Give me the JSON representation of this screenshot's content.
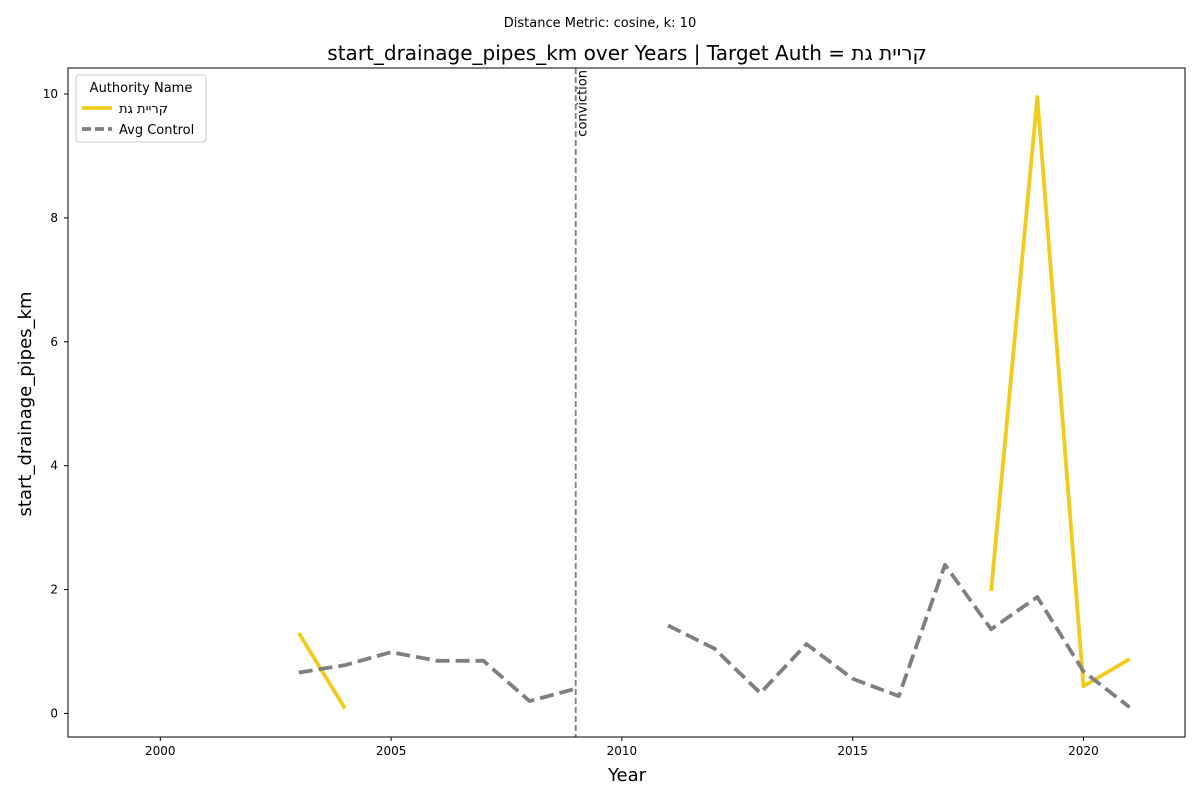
{
  "chart_data": {
    "type": "line",
    "suptitle": "Distance Metric: cosine, k: 10",
    "title": "start_drainage_pipes_km over Years | Target Auth = קריית גת",
    "xlabel": "Year",
    "ylabel": "start_drainage_pipes_km",
    "xlim": [
      1998,
      2022.2
    ],
    "ylim": [
      -0.38,
      10.42
    ],
    "xticks": [
      2000,
      2005,
      2010,
      2015,
      2020
    ],
    "yticks": [
      0,
      2,
      4,
      6,
      8,
      10
    ],
    "grid": false,
    "legend": {
      "title": "Authority Name",
      "placement": "top-left"
    },
    "annotations": [
      {
        "type": "vline",
        "x": 2009,
        "label": "conviction",
        "color": "#808080",
        "style": "dashed"
      }
    ],
    "series": [
      {
        "name": "קריית גת",
        "color": "#f2cc1c",
        "style": "solid",
        "segments": [
          {
            "x": [
              2003,
              2004
            ],
            "y": [
              1.3,
              0.08
            ]
          },
          {
            "x": [
              2018,
              2019,
              2020,
              2021
            ],
            "y": [
              1.98,
              9.95,
              0.44,
              0.88
            ]
          }
        ]
      },
      {
        "name": "Avg Control",
        "color": "#808080",
        "style": "dashed",
        "segments": [
          {
            "x": [
              2003,
              2004,
              2005,
              2006,
              2007,
              2008,
              2009
            ],
            "y": [
              0.66,
              0.78,
              0.99,
              0.85,
              0.85,
              0.2,
              0.4
            ]
          },
          {
            "x": [
              2011,
              2012,
              2013,
              2014,
              2015,
              2016,
              2017,
              2018,
              2019,
              2020,
              2021
            ],
            "y": [
              1.42,
              1.05,
              0.33,
              1.12,
              0.56,
              0.28,
              2.4,
              1.36,
              1.88,
              0.68,
              0.1
            ]
          }
        ]
      }
    ]
  }
}
